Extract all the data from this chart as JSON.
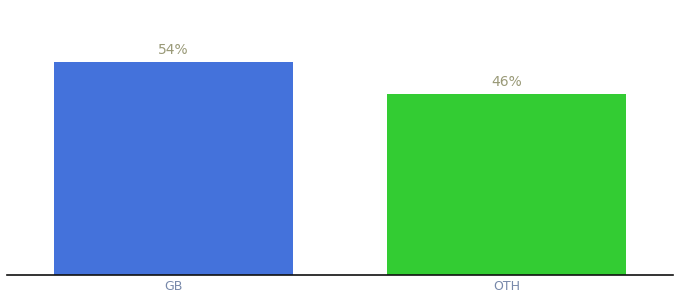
{
  "categories": [
    "GB",
    "OTH"
  ],
  "values": [
    54,
    46
  ],
  "bar_colors": [
    "#4472db",
    "#33cc33"
  ],
  "label_format": [
    "54%",
    "46%"
  ],
  "background_color": "#ffffff",
  "label_color": "#999977",
  "tick_color": "#7788aa",
  "bar_width": 0.72,
  "label_fontsize": 10,
  "tick_fontsize": 9,
  "ylim": [
    0,
    68
  ],
  "xlim": [
    -0.5,
    1.5
  ]
}
